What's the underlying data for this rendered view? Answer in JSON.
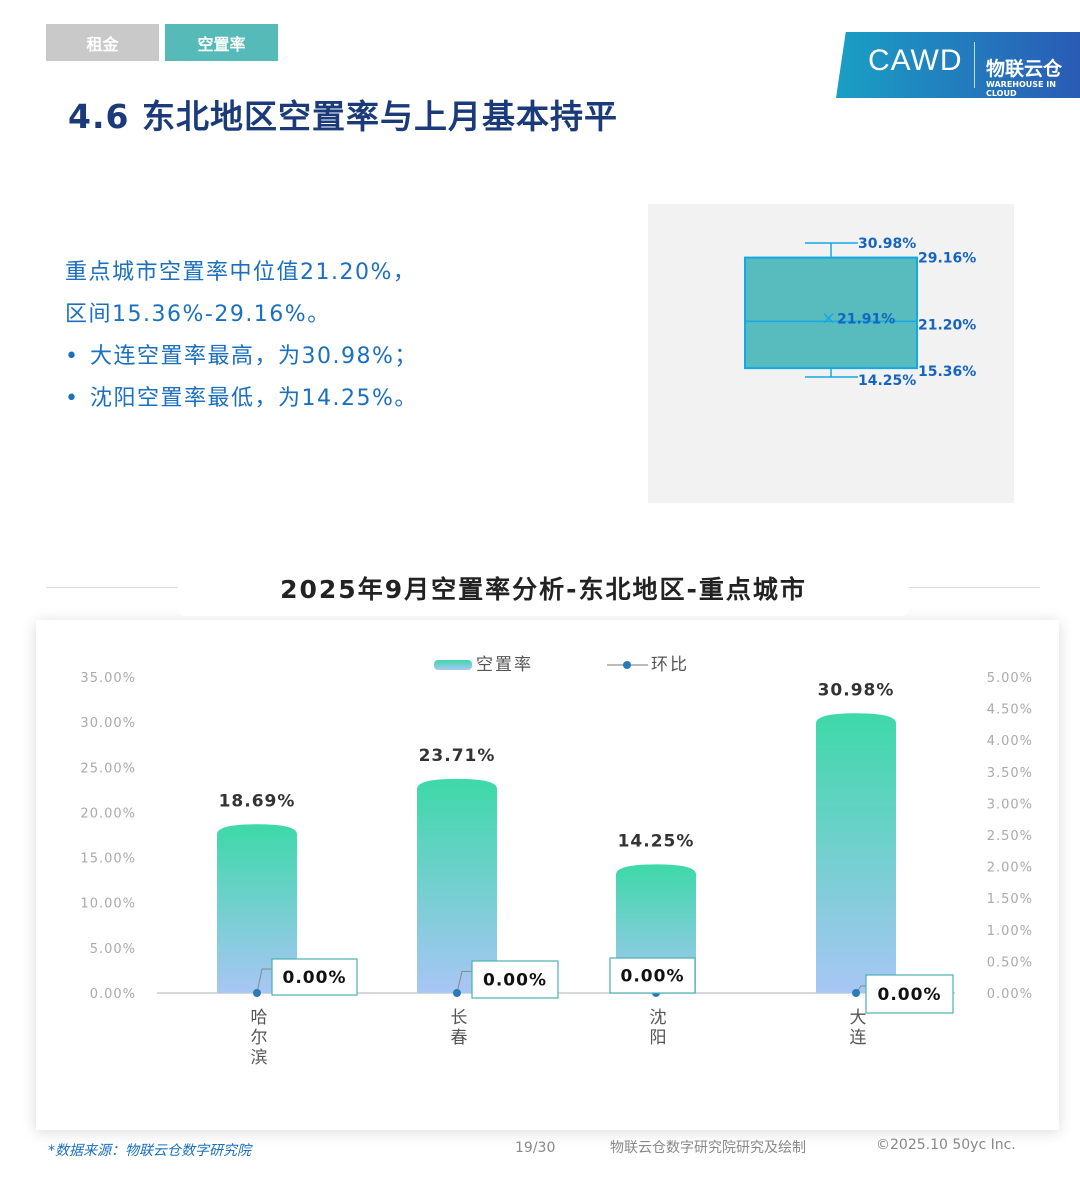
{
  "tabs": [
    {
      "label": "租金",
      "active": false
    },
    {
      "label": "空置率",
      "active": true
    }
  ],
  "logo": {
    "brand1": "CAWD",
    "brand2": "物联云仓",
    "brand2_sub": "WAREHOUSE IN CLOUD"
  },
  "title": "4.6 东北地区空置率与上月基本持平",
  "summary": {
    "line1": "重点城市空置率中位值21.20%，",
    "line2": "区间15.36%-29.16%。",
    "bullets": [
      "大连空置率最高，为30.98%；",
      "沈阳空置率最低，为14.25%。"
    ]
  },
  "boxplot": {
    "max": 30.98,
    "q3": 29.16,
    "median": 21.2,
    "mean": 21.91,
    "q1": 15.36,
    "min": 14.25,
    "labels": {
      "max": "30.98%",
      "q3": "29.16%",
      "median": "21.20%",
      "mean": "21.91%",
      "q1": "15.36%",
      "min": "14.25%"
    },
    "fill": "#58bbbd",
    "stroke": "#12a9e6",
    "label_color": "#1565c0"
  },
  "chart_data": {
    "type": "bar",
    "title": "2025年9月空置率分析-东北地区-重点城市",
    "categories": [
      "哈尔滨",
      "长春",
      "沈阳",
      "大连"
    ],
    "series": [
      {
        "name": "空置率",
        "type": "bar",
        "axis": "left",
        "values": [
          18.69,
          23.71,
          14.25,
          30.98
        ],
        "labels": [
          "18.69%",
          "23.71%",
          "14.25%",
          "30.98%"
        ],
        "colors": [
          "#3dd9a8",
          "#a8c6f5"
        ]
      },
      {
        "name": "环比",
        "type": "line",
        "axis": "right",
        "values": [
          0,
          0,
          0,
          0
        ],
        "labels": [
          "0.00%",
          "0.00%",
          "0.00%",
          "0.00%"
        ],
        "color": "#2a7ab8"
      }
    ],
    "y_left": {
      "range": [
        0,
        35
      ],
      "ticks": [
        "0.00%",
        "5.00%",
        "10.00%",
        "15.00%",
        "20.00%",
        "25.00%",
        "30.00%",
        "35.00%"
      ]
    },
    "y_right": {
      "range": [
        0,
        5
      ],
      "ticks": [
        "0.00%",
        "0.50%",
        "1.00%",
        "1.50%",
        "2.00%",
        "2.50%",
        "3.00%",
        "3.50%",
        "4.00%",
        "4.50%",
        "5.00%"
      ]
    },
    "legend": "top-center",
    "grid": false
  },
  "footer": {
    "source": "*数据来源：物联云仓数字研究院",
    "page": "19/30",
    "credit": "物联云仓数字研究院研究及绘制",
    "copyright": "©2025.10 50yc Inc."
  }
}
